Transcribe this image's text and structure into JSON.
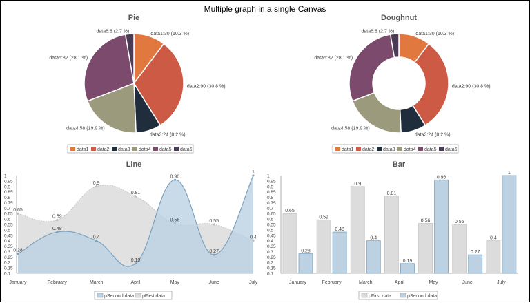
{
  "page_title": "Multiple graph in a single Canvas",
  "colors": {
    "data1": "#e07840",
    "data2": "#cc5a44",
    "data3": "#1f2d3d",
    "data4": "#9c9a7c",
    "data5": "#7c4a6c",
    "data6": "#4a3c54",
    "first": "#dcdcdc",
    "second": "#bcd2e2",
    "second_stroke": "#7aa0bc",
    "first_stroke": "#c8c8c8"
  },
  "chart_data": [
    {
      "type": "pie",
      "title": "Pie",
      "slices": [
        {
          "name": "data1",
          "value": 30,
          "label": "data1:30 (10.3 %)"
        },
        {
          "name": "data2",
          "value": 90,
          "label": "data2:90 (30.8 %)"
        },
        {
          "name": "data3",
          "value": 24,
          "label": "data3:24 (8.2 %)"
        },
        {
          "name": "data4",
          "value": 58,
          "label": "data4:58 (19.9 %)"
        },
        {
          "name": "data5",
          "value": 82,
          "label": "data5:82 (28.1 %)"
        },
        {
          "name": "data6",
          "value": 8,
          "label": "data6:8 (2.7 %)"
        }
      ],
      "legend": [
        "data1",
        "data2",
        "data3",
        "data4",
        "data5",
        "data6"
      ],
      "legend_position": "bottom"
    },
    {
      "type": "pie",
      "variant": "doughnut",
      "title": "Doughnut",
      "slices": [
        {
          "name": "data1",
          "value": 30,
          "label": "data1:30 (10.3 %)"
        },
        {
          "name": "data2",
          "value": 90,
          "label": "data2:90 (30.8 %)"
        },
        {
          "name": "data3",
          "value": 24,
          "label": "data3:24 (8.2 %)"
        },
        {
          "name": "data4",
          "value": 58,
          "label": "data4:58 (19.9 %)"
        },
        {
          "name": "data5",
          "value": 82,
          "label": "data5:82 (28.1 %)"
        },
        {
          "name": "data6",
          "value": 8,
          "label": "data6:8 (2.7 %)"
        }
      ],
      "legend": [
        "data1",
        "data2",
        "data3",
        "data4",
        "data5",
        "data6"
      ],
      "legend_position": "bottom"
    },
    {
      "type": "area",
      "title": "Line",
      "categories": [
        "January",
        "February",
        "March",
        "April",
        "May",
        "June",
        "July"
      ],
      "ylim": [
        0.1,
        1
      ],
      "yticks": [
        "0.1",
        "0.15",
        "0.2",
        "0.25",
        "0.3",
        "0.35",
        "0.4",
        "0.45",
        "0.5",
        "0.55",
        "0.6",
        "0.65",
        "0.7",
        "0.75",
        "0.8",
        "0.85",
        "0.9",
        "0.95",
        "1"
      ],
      "series": [
        {
          "name": "pFirst data",
          "values": [
            0.65,
            0.59,
            0.9,
            0.81,
            0.56,
            0.55,
            0.4
          ],
          "labels": [
            "0.65",
            "0.59",
            "0.9",
            "0.81",
            "0.56",
            "0.55",
            "0.4"
          ]
        },
        {
          "name": "pSecond data",
          "values": [
            0.28,
            0.48,
            0.4,
            0.19,
            0.96,
            0.27,
            1
          ],
          "labels": [
            "0.28",
            "0.48",
            "0.4",
            "0.19",
            "0.96",
            "0.27",
            "1"
          ]
        }
      ],
      "legend": [
        "pSecond data",
        "pFirst data"
      ],
      "legend_position": "bottom",
      "grid": false
    },
    {
      "type": "bar",
      "title": "Bar",
      "categories": [
        "January",
        "February",
        "March",
        "April",
        "May",
        "June",
        "July"
      ],
      "ylim": [
        0.1,
        1
      ],
      "yticks": [
        "0.1",
        "0.15",
        "0.2",
        "0.25",
        "0.3",
        "0.35",
        "0.4",
        "0.45",
        "0.5",
        "0.55",
        "0.6",
        "0.65",
        "0.7",
        "0.75",
        "0.8",
        "0.85",
        "0.9",
        "0.95",
        "1"
      ],
      "series": [
        {
          "name": "pFirst data",
          "values": [
            0.65,
            0.59,
            0.9,
            0.81,
            0.56,
            0.55,
            0.4
          ],
          "labels": [
            "0.65",
            "0.59",
            "0.9",
            "0.81",
            "0.56",
            "0.55",
            "0.4"
          ]
        },
        {
          "name": "pSecond data",
          "values": [
            0.28,
            0.48,
            0.4,
            0.19,
            0.96,
            0.27,
            1
          ],
          "labels": [
            "0.28",
            "0.48",
            "0.4",
            "0.19",
            "0.96",
            "0.27",
            "1"
          ]
        }
      ],
      "legend": [
        "pFirst data",
        "pSecond data"
      ],
      "legend_position": "bottom",
      "grid": false
    }
  ]
}
